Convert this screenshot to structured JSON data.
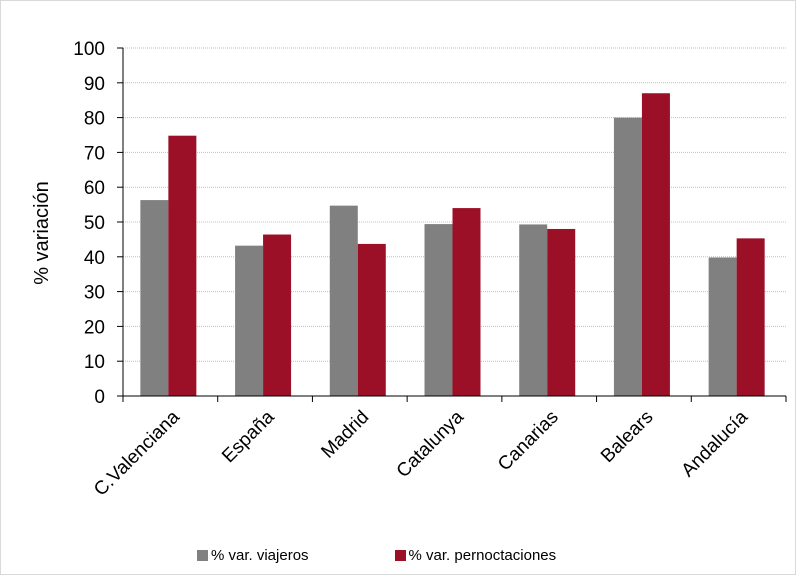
{
  "chart_data": {
    "type": "bar",
    "title": "",
    "xlabel": "",
    "ylabel": "% variación",
    "ylim": [
      0,
      100
    ],
    "yticks": [
      0,
      10,
      20,
      30,
      40,
      50,
      60,
      70,
      80,
      90,
      100
    ],
    "categories": [
      "C.Valenciana",
      "España",
      "Madrid",
      "Catalunya",
      "Canarias",
      "Balears",
      "Andalucía"
    ],
    "series": [
      {
        "name": "% var. viajeros",
        "color": "#808080",
        "values": [
          56.3,
          43.2,
          54.7,
          49.4,
          49.3,
          80.0,
          39.8
        ]
      },
      {
        "name": "% var. pernoctaciones",
        "color": "#9b1027",
        "values": [
          74.8,
          46.4,
          43.7,
          54.0,
          48.0,
          87.0,
          45.3
        ]
      }
    ],
    "grid": true,
    "legend_position": "bottom"
  }
}
